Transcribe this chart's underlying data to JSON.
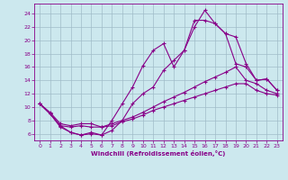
{
  "xlabel": "Windchill (Refroidissement éolien,°C)",
  "background_color": "#cce8ee",
  "grid_color": "#a0bcc8",
  "line_color": "#880088",
  "x_ticks": [
    0,
    1,
    2,
    3,
    4,
    5,
    6,
    7,
    8,
    9,
    10,
    11,
    12,
    13,
    14,
    15,
    16,
    17,
    18,
    19,
    20,
    21,
    22,
    23
  ],
  "y_ticks": [
    6,
    8,
    10,
    12,
    14,
    16,
    18,
    20,
    22,
    24
  ],
  "xlim": [
    -0.5,
    23.5
  ],
  "ylim": [
    5.0,
    25.5
  ],
  "series": [
    {
      "x": [
        0,
        1,
        2,
        3,
        4,
        5,
        6,
        7,
        8,
        9,
        10,
        11,
        12,
        13,
        14,
        15,
        16,
        17,
        18,
        19,
        20,
        21,
        22,
        23
      ],
      "y": [
        10.5,
        9.0,
        7.2,
        6.2,
        5.8,
        6.2,
        5.8,
        6.5,
        8.0,
        10.5,
        12.0,
        13.0,
        15.5,
        17.0,
        18.5,
        22.0,
        24.5,
        22.5,
        21.0,
        16.5,
        16.0,
        14.0,
        14.2,
        12.5
      ]
    },
    {
      "x": [
        0,
        1,
        2,
        3,
        4,
        5,
        6,
        7,
        8,
        9,
        10,
        11,
        12,
        13,
        14,
        15,
        16,
        17,
        18,
        19,
        20,
        21,
        22,
        23
      ],
      "y": [
        10.5,
        9.0,
        7.0,
        6.2,
        5.8,
        6.0,
        5.8,
        8.0,
        10.5,
        13.0,
        16.2,
        18.5,
        19.5,
        16.0,
        18.5,
        23.0,
        23.0,
        22.5,
        21.0,
        20.5,
        16.5,
        14.0,
        14.2,
        12.5
      ]
    },
    {
      "x": [
        0,
        1,
        2,
        3,
        4,
        5,
        6,
        7,
        8,
        9,
        10,
        11,
        12,
        13,
        14,
        15,
        16,
        17,
        18,
        19,
        20,
        21,
        22,
        23
      ],
      "y": [
        10.5,
        9.0,
        7.2,
        7.0,
        7.2,
        7.0,
        7.0,
        7.5,
        8.0,
        8.5,
        9.2,
        10.0,
        10.8,
        11.5,
        12.2,
        13.0,
        13.8,
        14.5,
        15.2,
        16.0,
        14.0,
        13.5,
        12.5,
        12.0
      ]
    },
    {
      "x": [
        0,
        1,
        2,
        3,
        4,
        5,
        6,
        7,
        8,
        9,
        10,
        11,
        12,
        13,
        14,
        15,
        16,
        17,
        18,
        19,
        20,
        21,
        22,
        23
      ],
      "y": [
        10.5,
        9.2,
        7.5,
        7.2,
        7.5,
        7.5,
        7.0,
        7.2,
        7.8,
        8.2,
        8.8,
        9.5,
        10.0,
        10.5,
        11.0,
        11.5,
        12.0,
        12.5,
        13.0,
        13.5,
        13.5,
        12.5,
        12.0,
        11.8
      ]
    }
  ]
}
